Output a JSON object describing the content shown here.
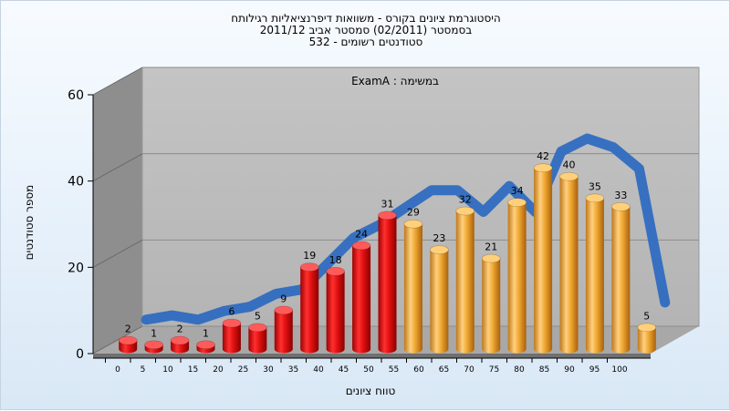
{
  "header": {
    "line1": "היסטוגרמת ציונים בקורס - משוואות דיפרנציאליות רגילותח",
    "line2": "בסמסטר  (02/2011)  סמסטר אביב 2011/12",
    "line3": "532 - סטודנטים רשומים"
  },
  "chart_data": {
    "type": "bar",
    "annotation": "ExamA : במשימה",
    "xlabel": "טווח ציונים",
    "ylabel": "מספר סטודנטים",
    "ylim": [
      0,
      60
    ],
    "yticks": [
      0,
      20,
      40,
      60
    ],
    "xticks": [
      "0",
      "5",
      "10",
      "15",
      "20",
      "25",
      "30",
      "35",
      "40",
      "45",
      "50",
      "55",
      "60",
      "65",
      "70",
      "75",
      "80",
      "85",
      "90",
      "95",
      "100"
    ],
    "values": [
      2,
      1,
      2,
      1,
      6,
      5,
      9,
      19,
      18,
      24,
      31,
      29,
      23,
      32,
      21,
      34,
      42,
      40,
      35,
      33,
      5
    ],
    "trend": [
      3,
      4,
      3,
      5,
      6,
      9,
      10,
      16,
      22,
      25,
      29,
      33,
      33,
      28,
      34,
      28,
      42,
      45,
      43,
      38,
      7
    ],
    "grid": true,
    "colors": {
      "fail": "#e01a1a",
      "pass": "#f0a830",
      "trend": "#2f6bc0",
      "wall": "#bcbcbc",
      "side": "#8e8e8e"
    },
    "fail_count": 11
  }
}
